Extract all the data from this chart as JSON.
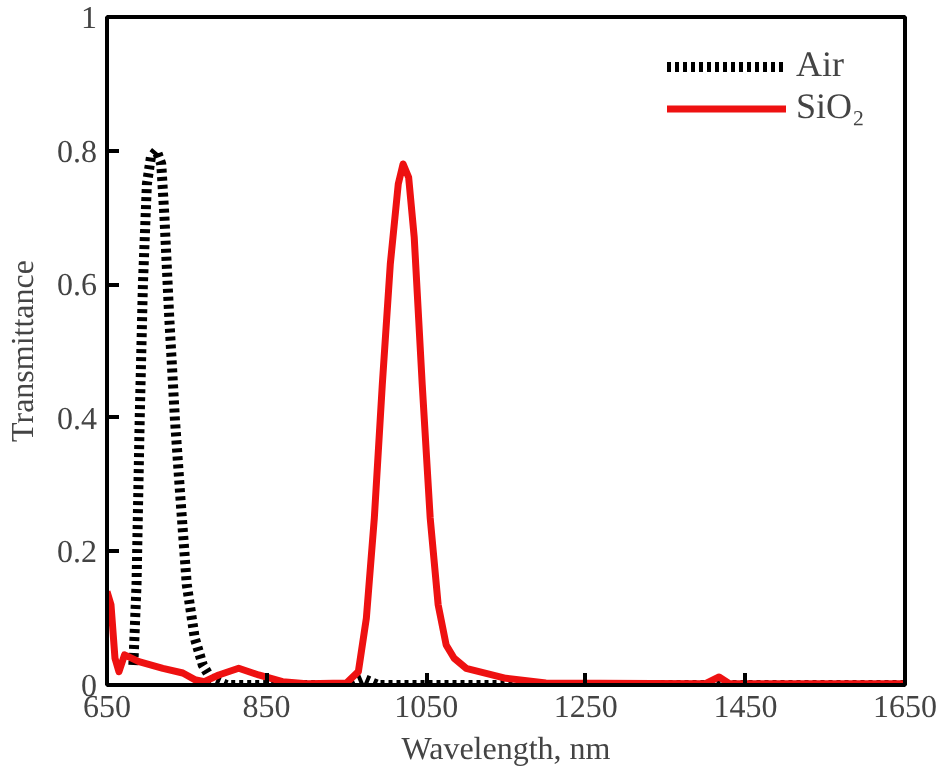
{
  "chart_data": {
    "type": "line",
    "xlabel": "Wavelength, nm",
    "ylabel": "Transmittance",
    "xlim": [
      650,
      1650
    ],
    "ylim": [
      0,
      1
    ],
    "xticks": [
      650,
      850,
      1050,
      1250,
      1450,
      1650
    ],
    "yticks": [
      0,
      0.2,
      0.4,
      0.6,
      0.8,
      1
    ],
    "legend": "top right",
    "grid": false,
    "series": [
      {
        "name": "Air",
        "color": "#000000",
        "line_style": "dotted",
        "x": [
          683,
          687,
          691,
          695,
          700,
          705,
          712,
          718,
          722,
          728,
          735,
          742,
          750,
          760,
          770,
          780,
          800,
          950,
          970,
          990,
          1650
        ],
        "values": [
          0.03,
          0.15,
          0.4,
          0.6,
          0.75,
          0.79,
          0.8,
          0.78,
          0.7,
          0.55,
          0.4,
          0.28,
          0.15,
          0.07,
          0.03,
          0.01,
          0,
          0,
          0.01,
          0,
          0
        ]
      },
      {
        "name": "SiO₂",
        "color": "#ee1111",
        "line_style": "solid",
        "x": [
          650,
          655,
          660,
          665,
          672,
          690,
          720,
          745,
          760,
          772,
          790,
          815,
          840,
          870,
          900,
          950,
          965,
          975,
          985,
          995,
          1005,
          1015,
          1021,
          1028,
          1035,
          1045,
          1055,
          1065,
          1075,
          1085,
          1100,
          1150,
          1200,
          1400,
          1417,
          1430,
          1650
        ],
        "values": [
          0.14,
          0.12,
          0.04,
          0.02,
          0.045,
          0.035,
          0.025,
          0.018,
          0.008,
          0.005,
          0.015,
          0.025,
          0.015,
          0.005,
          0.002,
          0.003,
          0.02,
          0.1,
          0.25,
          0.45,
          0.63,
          0.75,
          0.78,
          0.76,
          0.67,
          0.45,
          0.25,
          0.12,
          0.06,
          0.04,
          0.025,
          0.01,
          0.003,
          0.002,
          0.012,
          0.002,
          0.002
        ]
      }
    ]
  }
}
